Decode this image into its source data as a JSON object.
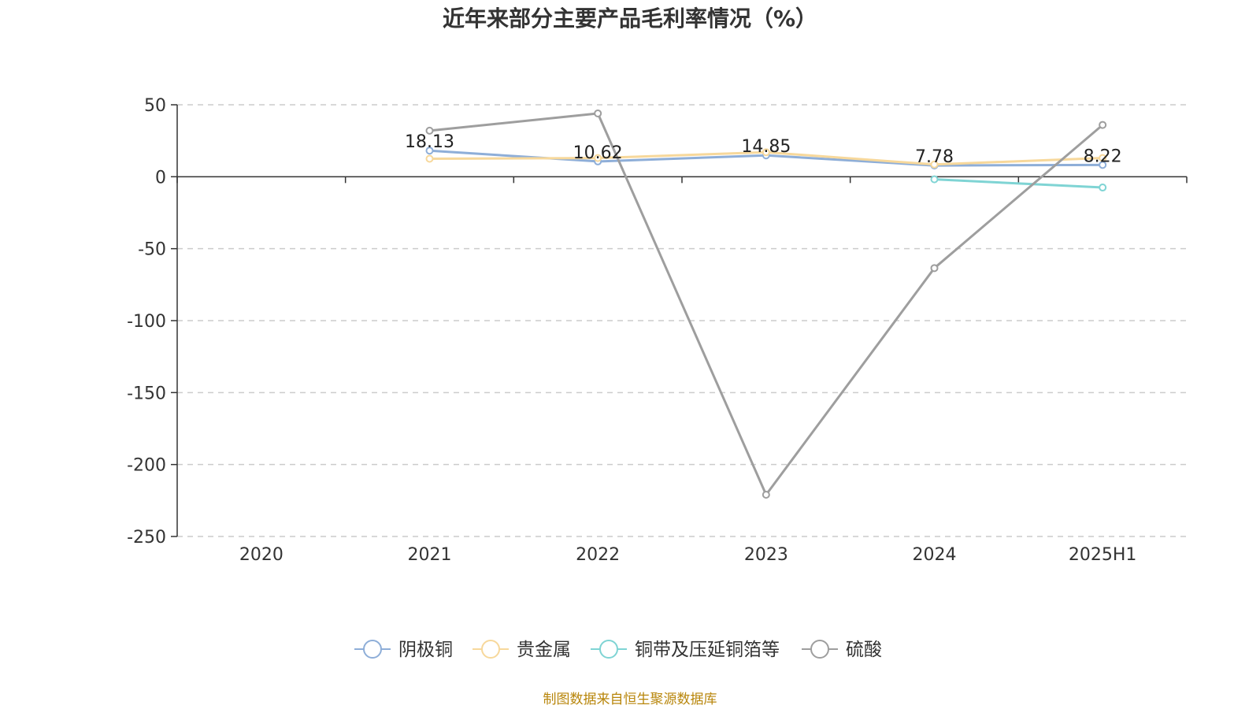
{
  "chart_data": {
    "type": "line",
    "title": "近年来部分主要产品毛利率情况（%）",
    "xlabel": "",
    "ylabel": "",
    "categories": [
      "2020",
      "2021",
      "2022",
      "2023",
      "2024",
      "2025H1"
    ],
    "ylim": [
      -250,
      50
    ],
    "yticks": [
      50,
      0,
      -50,
      -100,
      -150,
      -200,
      -250
    ],
    "grid": true,
    "legend_position": "bottom",
    "series": [
      {
        "name": "阴极铜",
        "color": "#8eaed8",
        "values": [
          null,
          18.13,
          10.62,
          14.85,
          7.78,
          8.22
        ]
      },
      {
        "name": "贵金属",
        "color": "#f7d89b",
        "values": [
          null,
          12.5,
          13.0,
          17.0,
          8.5,
          13.0
        ]
      },
      {
        "name": "铜带及压延铜箔等",
        "color": "#7fd4d4",
        "values": [
          null,
          null,
          null,
          null,
          -1.8,
          -7.5
        ]
      },
      {
        "name": "硫酸",
        "color": "#9e9e9e",
        "values": [
          null,
          32.0,
          44.0,
          -221.0,
          -63.5,
          36.0
        ]
      }
    ],
    "data_labels": {
      "series": "阴极铜",
      "values": [
        "",
        "18.13",
        "10.62",
        "14.85",
        "7.78",
        "8.22"
      ]
    },
    "source": "制图数据来自恒生聚源数据库"
  }
}
